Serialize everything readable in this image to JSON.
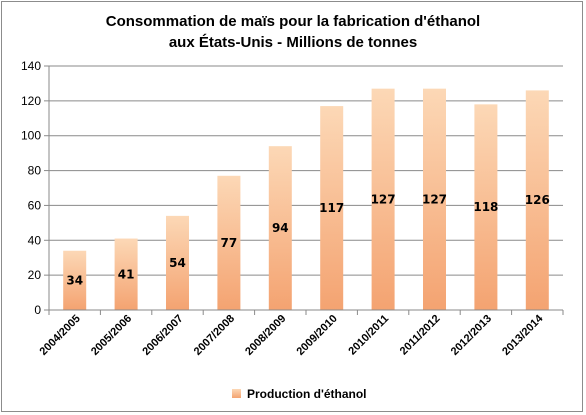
{
  "chart_data": {
    "type": "bar",
    "title_lines": [
      "Consommation de maïs pour la fabrication d'éthanol",
      "aux États-Unis - Millions de tonnes"
    ],
    "categories": [
      "2004/2005",
      "2005/2006",
      "2006/2007",
      "2007/2008",
      "2008/2009",
      "2009/2010",
      "2010/2011",
      "2011/2012",
      "2012/2013",
      "2013/2014"
    ],
    "series": [
      {
        "name": "Production d'éthanol",
        "values": [
          34,
          41,
          54,
          77,
          94,
          117,
          127,
          127,
          118,
          126
        ],
        "data_labels": [
          "34",
          "41",
          "54",
          "77",
          "94",
          "117",
          "127",
          "127",
          "118",
          "126"
        ]
      }
    ],
    "ylim": [
      0,
      140
    ],
    "yticks": [
      0,
      20,
      40,
      60,
      80,
      100,
      120,
      140
    ],
    "grid": true,
    "legend_position": "bottom",
    "colors": {
      "bar_top": "#fcd8b6",
      "bar_bottom": "#f4a371",
      "grid": "#8a8a8a"
    }
  }
}
